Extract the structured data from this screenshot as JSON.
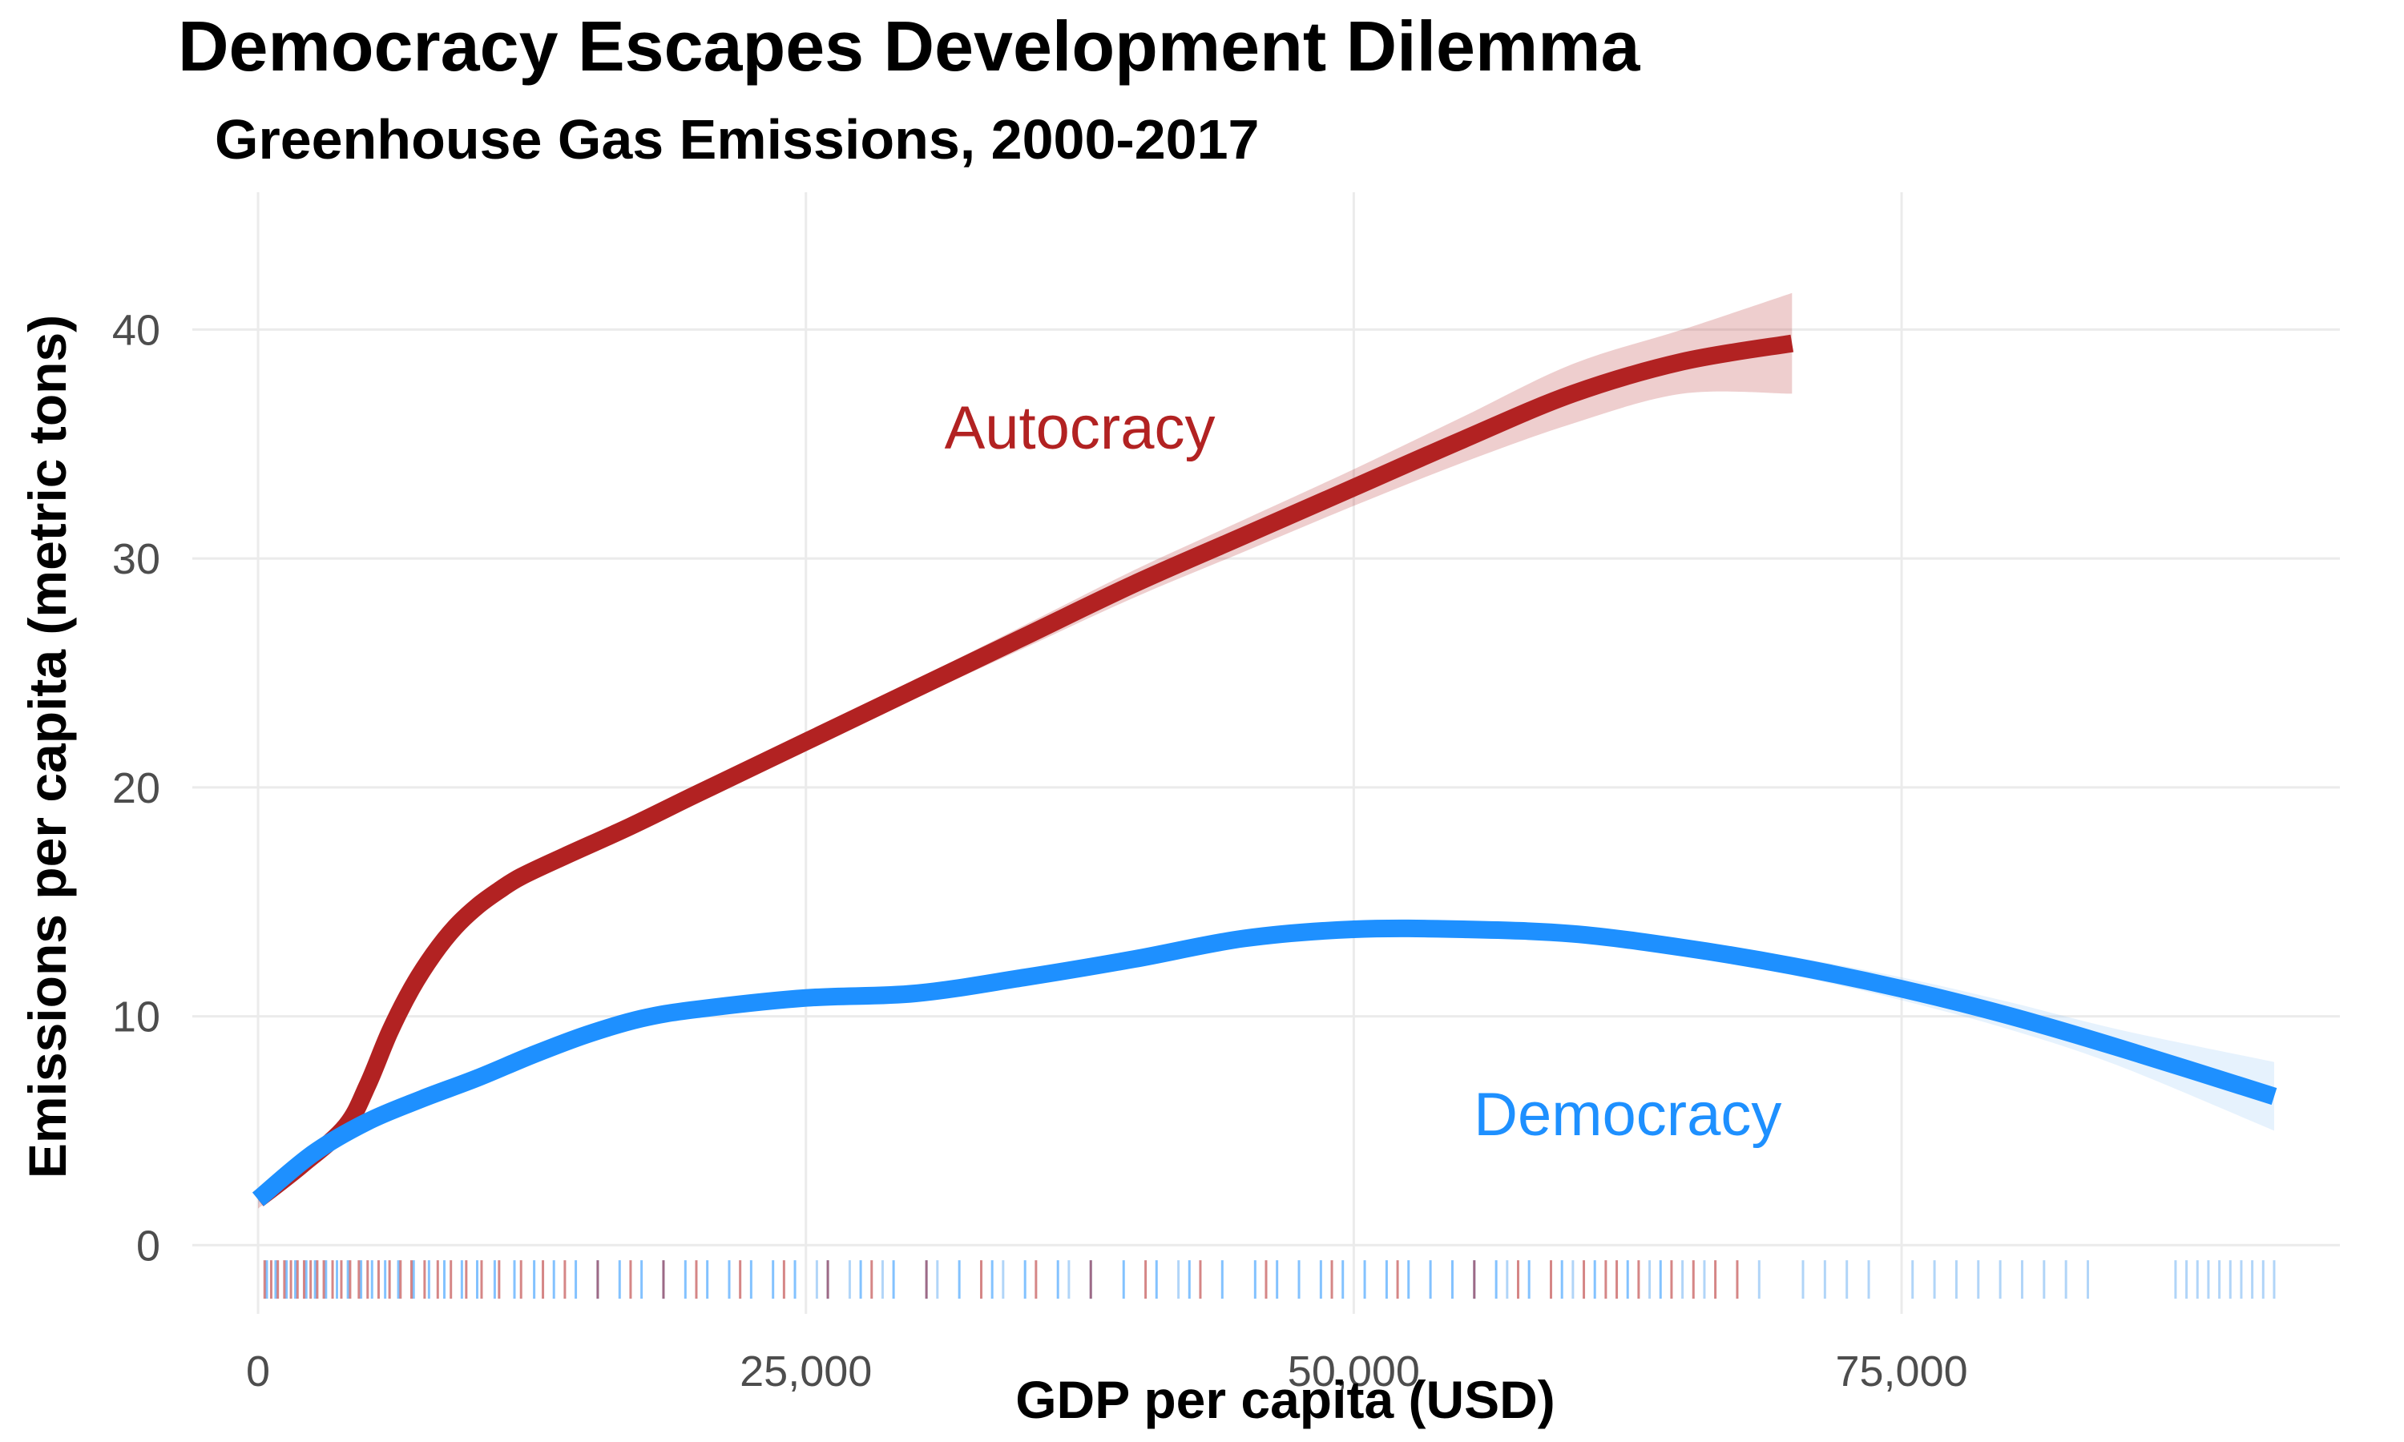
{
  "chart_data": {
    "type": "line",
    "title": "Democracy Escapes Development Dilemma",
    "subtitle": "Greenhouse Gas Emissions, 2000-2017",
    "xlabel": "GDP per capita (USD)",
    "ylabel": "Emissions per capita (metric tons)",
    "xlim": [
      -3000,
      95000
    ],
    "ylim": [
      -3,
      46
    ],
    "x_ticks": [
      0,
      25000,
      50000,
      75000
    ],
    "x_tick_labels": [
      "0",
      "25,000",
      "50,000",
      "75,000"
    ],
    "y_ticks": [
      0,
      10,
      20,
      30,
      40
    ],
    "y_tick_labels": [
      "0",
      "10",
      "20",
      "30",
      "40"
    ],
    "grid": true,
    "legend": "none",
    "series": [
      {
        "name": "Autocracy",
        "color": "#b22222",
        "band_color": "#b22222",
        "x": [
          0,
          2000,
          4000,
          5000,
          6000,
          7000,
          8000,
          9000,
          10000,
          11000,
          12000,
          14000,
          17000,
          20000,
          25000,
          30000,
          35000,
          40000,
          45000,
          50000,
          55000,
          60000,
          65000,
          70000
        ],
        "y": [
          2.0,
          3.5,
          5.2,
          7.0,
          9.3,
          11.2,
          12.7,
          13.9,
          14.8,
          15.5,
          16.1,
          17.0,
          18.3,
          19.7,
          22.0,
          24.3,
          26.6,
          28.9,
          31.0,
          33.1,
          35.2,
          37.2,
          38.6,
          39.4
        ],
        "y_lower": [
          1.6,
          3.1,
          4.9,
          6.7,
          9.0,
          10.9,
          12.4,
          13.6,
          14.5,
          15.2,
          15.8,
          16.7,
          18.0,
          19.4,
          21.6,
          23.9,
          26.1,
          28.3,
          30.3,
          32.3,
          34.2,
          35.9,
          37.2,
          37.2
        ],
        "y_upper": [
          2.4,
          3.9,
          5.5,
          7.3,
          9.6,
          11.5,
          13.0,
          14.2,
          15.1,
          15.8,
          16.4,
          17.3,
          18.6,
          20.0,
          22.4,
          24.7,
          27.1,
          29.5,
          31.7,
          33.9,
          36.2,
          38.5,
          40.0,
          41.6
        ]
      },
      {
        "name": "Democracy",
        "color": "#1e90ff",
        "band_color": "#8fc4f6",
        "x": [
          0,
          2500,
          5000,
          7500,
          10000,
          12500,
          15000,
          17500,
          20000,
          25000,
          30000,
          35000,
          40000,
          45000,
          50000,
          55000,
          60000,
          65000,
          70000,
          75000,
          80000,
          85000,
          92000
        ],
        "y": [
          2.0,
          4.0,
          5.4,
          6.4,
          7.3,
          8.3,
          9.2,
          9.9,
          10.3,
          10.8,
          11.0,
          11.7,
          12.5,
          13.4,
          13.8,
          13.8,
          13.6,
          13.0,
          12.2,
          11.2,
          10.0,
          8.6,
          6.5
        ],
        "y_lower": [
          1.8,
          3.8,
          5.2,
          6.2,
          7.1,
          8.1,
          9.0,
          9.7,
          10.1,
          10.6,
          10.8,
          11.5,
          12.3,
          13.2,
          13.6,
          13.6,
          13.3,
          12.7,
          11.8,
          10.7,
          9.4,
          7.8,
          5.0
        ],
        "y_upper": [
          2.2,
          4.2,
          5.6,
          6.6,
          7.5,
          8.5,
          9.4,
          10.1,
          10.5,
          11.0,
          11.2,
          11.9,
          12.7,
          13.6,
          14.0,
          14.0,
          13.9,
          13.3,
          12.6,
          11.7,
          10.6,
          9.4,
          8.0
        ]
      }
    ],
    "annotations": [
      {
        "text": "Autocracy",
        "x": 37500,
        "y": 34.8,
        "color": "#b22222"
      },
      {
        "text": "Democracy",
        "x": 62500,
        "y": 4.8,
        "color": "#1e90ff"
      }
    ],
    "rug": {
      "y": -1.5,
      "autocracy_color": "#b22222",
      "democracy_color": "#1e90ff",
      "democracy_light_color": "#a9d0f7",
      "autocracy_x": [
        300,
        600,
        900,
        1200,
        1500,
        1800,
        2100,
        2400,
        2700,
        3000,
        3400,
        3800,
        4200,
        4600,
        5000,
        5500,
        6000,
        6500,
        7000,
        7600,
        8200,
        8800,
        9500,
        10200,
        11000,
        12000,
        13000,
        14000,
        15500,
        17000,
        18500,
        20000,
        22000,
        24000,
        26000,
        28000,
        30500,
        33000,
        35500,
        38000,
        40500,
        43000,
        46000,
        49000,
        52000,
        55500,
        57500,
        59000,
        60500,
        61500,
        62000,
        63000,
        64500,
        65500,
        66500,
        67500
      ],
      "democracy_x": [
        400,
        800,
        1300,
        1700,
        2200,
        2600,
        3100,
        3600,
        4100,
        4700,
        5200,
        5800,
        6400,
        7100,
        7800,
        8500,
        9300,
        10000,
        10800,
        11700,
        12600,
        13500,
        14500,
        15500,
        16500,
        17500,
        18500,
        19500,
        20500,
        21500,
        22500,
        23500,
        24500,
        26000,
        27500,
        29000,
        30500,
        32000,
        33500,
        35000,
        36500,
        38000,
        39500,
        41000,
        42500,
        44000,
        45500,
        46500,
        47500,
        48500,
        49500,
        50500,
        51500,
        52500,
        53500,
        54500,
        55500,
        56500,
        58000,
        59500,
        61000,
        62500,
        64000
      ],
      "democracy_light_x": [
        25500,
        27000,
        28500,
        31000,
        34000,
        37000,
        42000,
        57000,
        60000,
        63500,
        65000,
        66000,
        68500,
        70500,
        71500,
        72500,
        73500,
        75500,
        76500,
        77500,
        78500,
        79500,
        80500,
        81500,
        82500,
        83500,
        87500,
        88000,
        88500,
        89000,
        89500,
        90000,
        90500,
        91000,
        91500,
        92000
      ]
    }
  }
}
